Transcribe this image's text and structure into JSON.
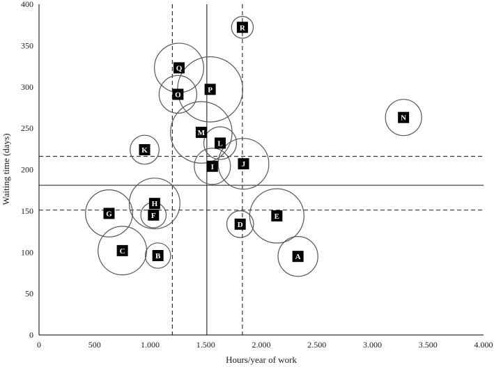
{
  "chart_data": {
    "type": "scatter",
    "xlabel": "Hours/year of work",
    "ylabel": "Waiting time (days)",
    "xlim": [
      0,
      4000
    ],
    "ylim": [
      0,
      400
    ],
    "x_ticks": [
      0,
      500,
      1000,
      1500,
      2000,
      2500,
      3000,
      3500,
      4000
    ],
    "x_tick_labels": [
      "0",
      "500",
      "1.000",
      "1.500",
      "2.000",
      "2.500",
      "3.000",
      "3.500",
      "4.000"
    ],
    "y_ticks": [
      0,
      50,
      100,
      150,
      200,
      250,
      300,
      350,
      400
    ],
    "y_tick_labels": [
      "0",
      "50",
      "100",
      "150",
      "200",
      "250",
      "300",
      "350",
      "400"
    ],
    "grid": false,
    "points": [
      {
        "label": "A",
        "x": 2330,
        "y": 95,
        "size": 0.55
      },
      {
        "label": "B",
        "x": 1070,
        "y": 96,
        "size": 0.35
      },
      {
        "label": "C",
        "x": 750,
        "y": 102,
        "size": 0.67
      },
      {
        "label": "D",
        "x": 1810,
        "y": 134,
        "size": 0.37
      },
      {
        "label": "E",
        "x": 2140,
        "y": 144,
        "size": 0.75
      },
      {
        "label": "F",
        "x": 1030,
        "y": 145,
        "size": 0.35
      },
      {
        "label": "G",
        "x": 630,
        "y": 147,
        "size": 0.65
      },
      {
        "label": "H",
        "x": 1040,
        "y": 159,
        "size": 0.7
      },
      {
        "label": "I",
        "x": 1560,
        "y": 204,
        "size": 0.5
      },
      {
        "label": "J",
        "x": 1840,
        "y": 207,
        "size": 0.7
      },
      {
        "label": "K",
        "x": 950,
        "y": 224,
        "size": 0.4
      },
      {
        "label": "L",
        "x": 1630,
        "y": 232,
        "size": 0.45
      },
      {
        "label": "M",
        "x": 1460,
        "y": 245,
        "size": 0.85
      },
      {
        "label": "N",
        "x": 3280,
        "y": 263,
        "size": 0.5
      },
      {
        "label": "O",
        "x": 1250,
        "y": 291,
        "size": 0.52
      },
      {
        "label": "P",
        "x": 1540,
        "y": 297,
        "size": 0.9
      },
      {
        "label": "Q",
        "x": 1260,
        "y": 323,
        "size": 0.68
      },
      {
        "label": "R",
        "x": 1830,
        "y": 372,
        "size": 0.3
      }
    ],
    "reference_lines": {
      "vertical_solid": [
        1510
      ],
      "vertical_dashed": [
        1200,
        1830
      ],
      "horizontal_solid": [
        181
      ],
      "horizontal_dashed": [
        151,
        216
      ]
    }
  }
}
